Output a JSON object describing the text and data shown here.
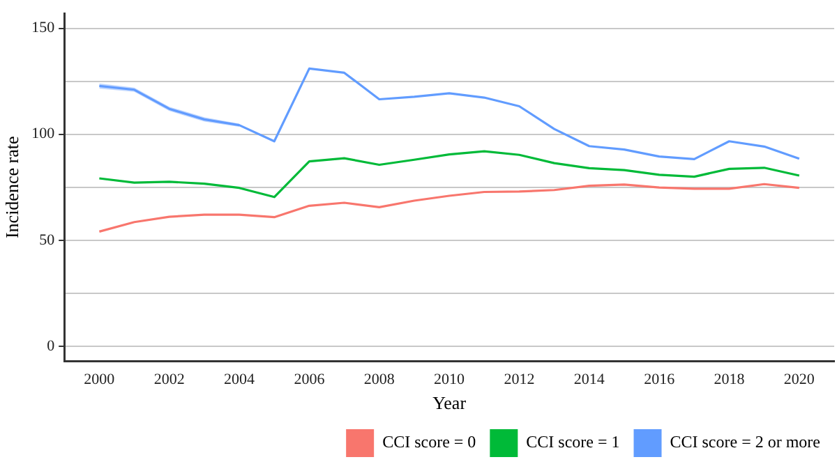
{
  "chart_data": {
    "type": "line",
    "xlabel": "Year",
    "ylabel": "Incidence rate",
    "x": [
      2000,
      2001,
      2002,
      2003,
      2004,
      2005,
      2006,
      2007,
      2008,
      2009,
      2010,
      2011,
      2012,
      2013,
      2014,
      2015,
      2016,
      2017,
      2018,
      2019,
      2020
    ],
    "series": [
      {
        "name": "CCI score = 0",
        "color": "#f8766d",
        "values": [
          54.1,
          58.6,
          61.1,
          62.1,
          62.1,
          60.9,
          66.3,
          67.7,
          65.6,
          68.7,
          71,
          72.8,
          73,
          73.7,
          75.7,
          76.3,
          74.9,
          74.3,
          74.3,
          76.5,
          74.7
        ]
      },
      {
        "name": "CCI score = 1",
        "color": "#00ba38",
        "values": [
          79.2,
          77.2,
          77.6,
          76.7,
          74.7,
          70.4,
          87.2,
          88.7,
          85.6,
          88,
          90.5,
          92,
          90.3,
          86.4,
          84,
          83.1,
          80.9,
          80,
          83.7,
          84.2,
          80.5
        ]
      },
      {
        "name": "CCI score = 2 or more",
        "color": "#619cff",
        "values": [
          122.8,
          121,
          112,
          107,
          104.3,
          96.7,
          131,
          129,
          116.5,
          117.7,
          119.3,
          117.3,
          113.2,
          102.5,
          94.4,
          92.8,
          89.5,
          88.3,
          96.7,
          94.2,
          88.5
        ],
        "lower": [
          121.5,
          120,
          111,
          106,
          103.5,
          null,
          null,
          null,
          null,
          null,
          null,
          null,
          null,
          null,
          null,
          null,
          null,
          null,
          null,
          null,
          null
        ],
        "upper": [
          124,
          122,
          113,
          108,
          105,
          null,
          null,
          null,
          null,
          null,
          null,
          null,
          null,
          null,
          null,
          null,
          null,
          null,
          null,
          null,
          null
        ]
      }
    ],
    "xlim": [
      1999,
      2021
    ],
    "xticks": [
      2000,
      2002,
      2004,
      2006,
      2008,
      2010,
      2012,
      2014,
      2016,
      2018,
      2020
    ],
    "ylim": [
      -7,
      157
    ],
    "yticks": [
      0,
      {
        "value": 25,
        "label": null
      },
      50,
      {
        "value": 75,
        "label": null
      },
      100,
      {
        "value": 125,
        "label": null
      },
      150
    ],
    "grid": "y",
    "legend": "bottom",
    "marker": "none",
    "line_style": "solid"
  }
}
